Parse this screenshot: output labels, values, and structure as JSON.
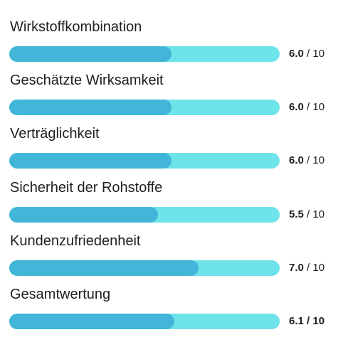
{
  "ratings": [
    {
      "label": "Wirkstoffkombination",
      "value": "6.0",
      "separator": " / ",
      "max": "10",
      "fraction": 0.6
    },
    {
      "label": "Geschätzte Wirksamkeit",
      "value": "6.0",
      "separator": " / ",
      "max": "10",
      "fraction": 0.6
    },
    {
      "label": "Verträglichkeit",
      "value": "6.0",
      "separator": " / ",
      "max": "10",
      "fraction": 0.6
    },
    {
      "label": "Sicherheit der Rohstoffe",
      "value": "5.5",
      "separator": " / ",
      "max": "10",
      "fraction": 0.55
    },
    {
      "label": "Kundenzufriedenheit",
      "value": "7.0",
      "separator": " / ",
      "max": "10",
      "fraction": 0.7
    },
    {
      "label": "Gesamtwertung",
      "value": "6.1",
      "separator": " / ",
      "max": "10",
      "fraction": 0.61
    }
  ],
  "colors": {
    "track": "#6ee3ea",
    "fill": "#41b6d8",
    "text": "#1f1f1f"
  }
}
